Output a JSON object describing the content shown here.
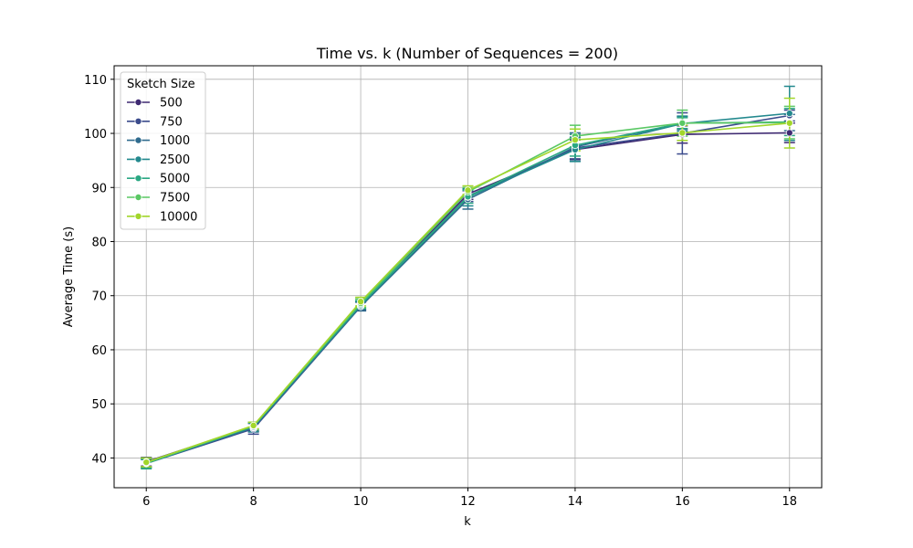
{
  "chart_data": {
    "type": "line",
    "title": "Time vs. k (Number of Sequences = 200)",
    "xlabel": "k",
    "ylabel": "Average Time (s)",
    "x": [
      6,
      8,
      10,
      12,
      14,
      16,
      18
    ],
    "xticks": [
      "6",
      "8",
      "10",
      "12",
      "14",
      "16",
      "18"
    ],
    "yticks": [
      "40",
      "50",
      "60",
      "70",
      "80",
      "90",
      "100",
      "110"
    ],
    "xlim": [
      5.4,
      18.6
    ],
    "ylim": [
      34.5,
      112.5
    ],
    "grid": true,
    "legend": {
      "title": "Sketch Size",
      "placement": "top-left"
    },
    "series": [
      {
        "name": "500",
        "color": "#3f2a72",
        "values": [
          39.3,
          45.8,
          68.2,
          88.8,
          97.0,
          99.8,
          100.1
        ],
        "err": [
          0.8,
          0.8,
          0.8,
          1.0,
          1.8,
          1.6,
          1.8
        ]
      },
      {
        "name": "750",
        "color": "#3b4b8c",
        "values": [
          39.0,
          45.4,
          68.0,
          88.4,
          97.3,
          100.0,
          103.3
        ],
        "err": [
          0.8,
          1.0,
          0.8,
          1.0,
          2.0,
          3.8,
          1.0
        ]
      },
      {
        "name": "1000",
        "color": "#2f6b8e",
        "values": [
          39.1,
          45.6,
          68.0,
          87.8,
          97.5,
          101.9,
          102.0
        ],
        "err": [
          0.8,
          0.8,
          0.8,
          1.8,
          2.6,
          1.2,
          1.5
        ]
      },
      {
        "name": "2500",
        "color": "#23898e",
        "values": [
          39.0,
          45.7,
          68.2,
          88.2,
          97.0,
          101.8,
          103.7
        ],
        "err": [
          0.7,
          0.8,
          0.7,
          1.6,
          2.2,
          1.4,
          5.0
        ]
      },
      {
        "name": "5000",
        "color": "#2aa883",
        "values": [
          39.0,
          45.9,
          68.4,
          88.3,
          97.8,
          101.9,
          102.1
        ],
        "err": [
          1.0,
          0.6,
          0.7,
          1.2,
          2.0,
          1.0,
          2.5
        ]
      },
      {
        "name": "7500",
        "color": "#5ac864",
        "values": [
          39.1,
          45.9,
          68.6,
          89.2,
          99.5,
          101.9,
          102.0
        ],
        "err": [
          0.8,
          0.7,
          0.8,
          0.8,
          2.0,
          2.4,
          3.0
        ]
      },
      {
        "name": "10000",
        "color": "#a2d62b",
        "values": [
          39.2,
          46.0,
          68.9,
          89.5,
          98.8,
          100.1,
          101.9
        ],
        "err": [
          0.8,
          0.6,
          0.8,
          0.8,
          2.0,
          1.4,
          4.6
        ]
      }
    ]
  }
}
